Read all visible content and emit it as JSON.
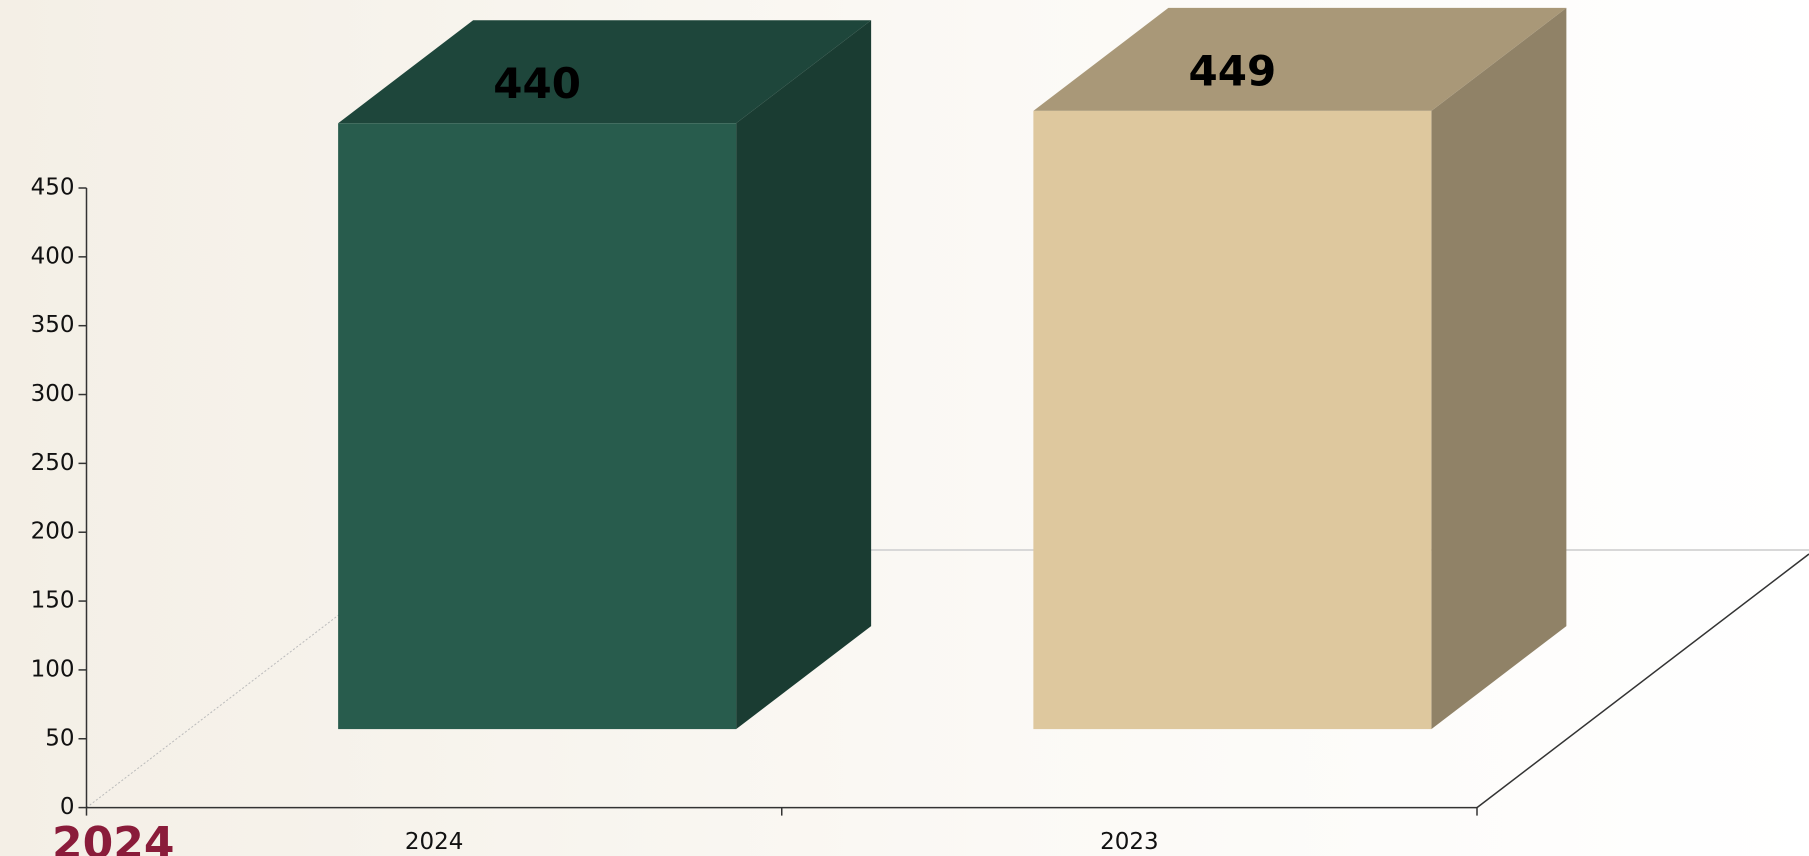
{
  "chart_data": {
    "type": "bar3d",
    "categories": [
      "2024",
      "2023"
    ],
    "values": [
      440,
      449
    ],
    "colors": [
      "#285c4d",
      "#dec89e"
    ],
    "ylim": [
      0,
      450
    ],
    "yticks": [
      0,
      50,
      100,
      150,
      200,
      250,
      300,
      350,
      400,
      450
    ],
    "watermark": "2024"
  }
}
